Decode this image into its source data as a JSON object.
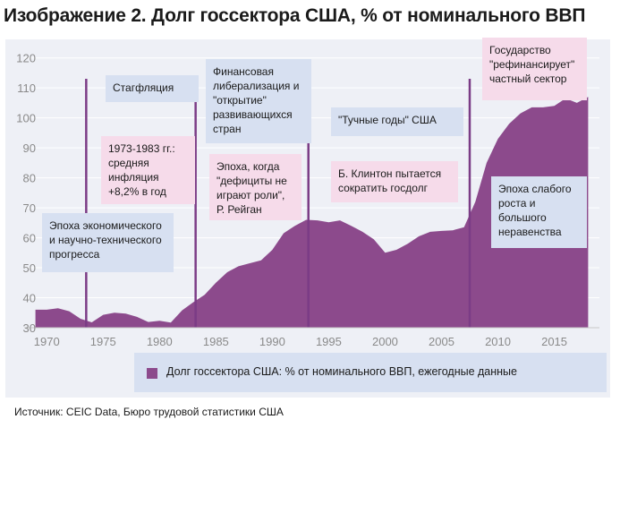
{
  "title": "Изображение 2. Долг госсектора США, % от номинального ВВП",
  "source": "Источник: CEIC Data, Бюро трудовой статистики США",
  "chart_data": {
    "type": "area",
    "color": "#8c4a8c",
    "marker_color": "#7b3c86",
    "xlim": [
      1968,
      2019
    ],
    "ylim": [
      30,
      122
    ],
    "x_ticks": [
      1970,
      1975,
      1980,
      1985,
      1990,
      1995,
      2000,
      2005,
      2010,
      2015
    ],
    "y_ticks": [
      30,
      40,
      50,
      60,
      70,
      80,
      90,
      100,
      110,
      120
    ],
    "x_tick_labels": [
      "1970",
      "1975",
      "1980",
      "1985",
      "1990",
      "1995",
      "2000",
      "2005",
      "2010",
      "2015"
    ],
    "y_tick_labels": [
      "30",
      "40",
      "50",
      "60",
      "70",
      "80",
      "90",
      "100",
      "110",
      "120"
    ],
    "series": [
      {
        "name": "Долг госсектора США: % от номинального ВВП, ежегодные данные",
        "x": [
          1969,
          1970,
          1971,
          1972,
          1973,
          1974,
          1975,
          1976,
          1977,
          1978,
          1979,
          1980,
          1981,
          1982,
          1983,
          1984,
          1985,
          1986,
          1987,
          1988,
          1989,
          1990,
          1991,
          1992,
          1993,
          1994,
          1995,
          1996,
          1997,
          1998,
          1999,
          2000,
          2001,
          2002,
          2003,
          2004,
          2005,
          2006,
          2007,
          2008,
          2009,
          2010,
          2011,
          2012,
          2013,
          2014,
          2015,
          2016,
          2017,
          2018
        ],
        "y": [
          36.0,
          36.0,
          36.5,
          35.5,
          33.0,
          31.8,
          34.3,
          35.0,
          34.7,
          33.6,
          31.9,
          32.3,
          31.7,
          35.8,
          38.5,
          41.0,
          45.0,
          48.5,
          50.5,
          51.5,
          52.5,
          56.0,
          61.5,
          64.0,
          66.0,
          65.8,
          65.2,
          65.8,
          64.0,
          62.0,
          59.5,
          55.0,
          56.0,
          58.0,
          60.5,
          62.0,
          62.3,
          62.5,
          63.5,
          72.0,
          85.0,
          93.0,
          98.0,
          101.5,
          103.5,
          103.5,
          104.0,
          106.5,
          105.0,
          107.0
        ]
      }
    ],
    "event_lines": [
      1973.5,
      1983.2,
      1993.2,
      2007.5
    ],
    "annotations": [
      {
        "id": "science-era",
        "style": "blue",
        "text": "Эпоха экономического и научно-технического прогресса"
      },
      {
        "id": "stagflation",
        "style": "blue",
        "text": "Стагфляция"
      },
      {
        "id": "inflation",
        "style": "pink",
        "text": "1973-1983 гг.: средняя инфляция +8,2% в год"
      },
      {
        "id": "financial-lib",
        "style": "blue",
        "text": "Финансовая либерализация и \"открытие\" развивающихся стран"
      },
      {
        "id": "reagan",
        "style": "pink",
        "text": "Эпоха, когда \"дефициты не играют роли\", Р. Рейган"
      },
      {
        "id": "fat-years",
        "style": "blue",
        "text": "\"Тучные годы\" США"
      },
      {
        "id": "clinton",
        "style": "pink",
        "text": "Б. Клинтон пытается сократить госдолг"
      },
      {
        "id": "refinance",
        "style": "pink",
        "text": "Государство \"рефинансирует\" частный сектор"
      },
      {
        "id": "weak-growth",
        "style": "blue",
        "text": "Эпоха слабого роста и большого неравенства"
      }
    ]
  }
}
